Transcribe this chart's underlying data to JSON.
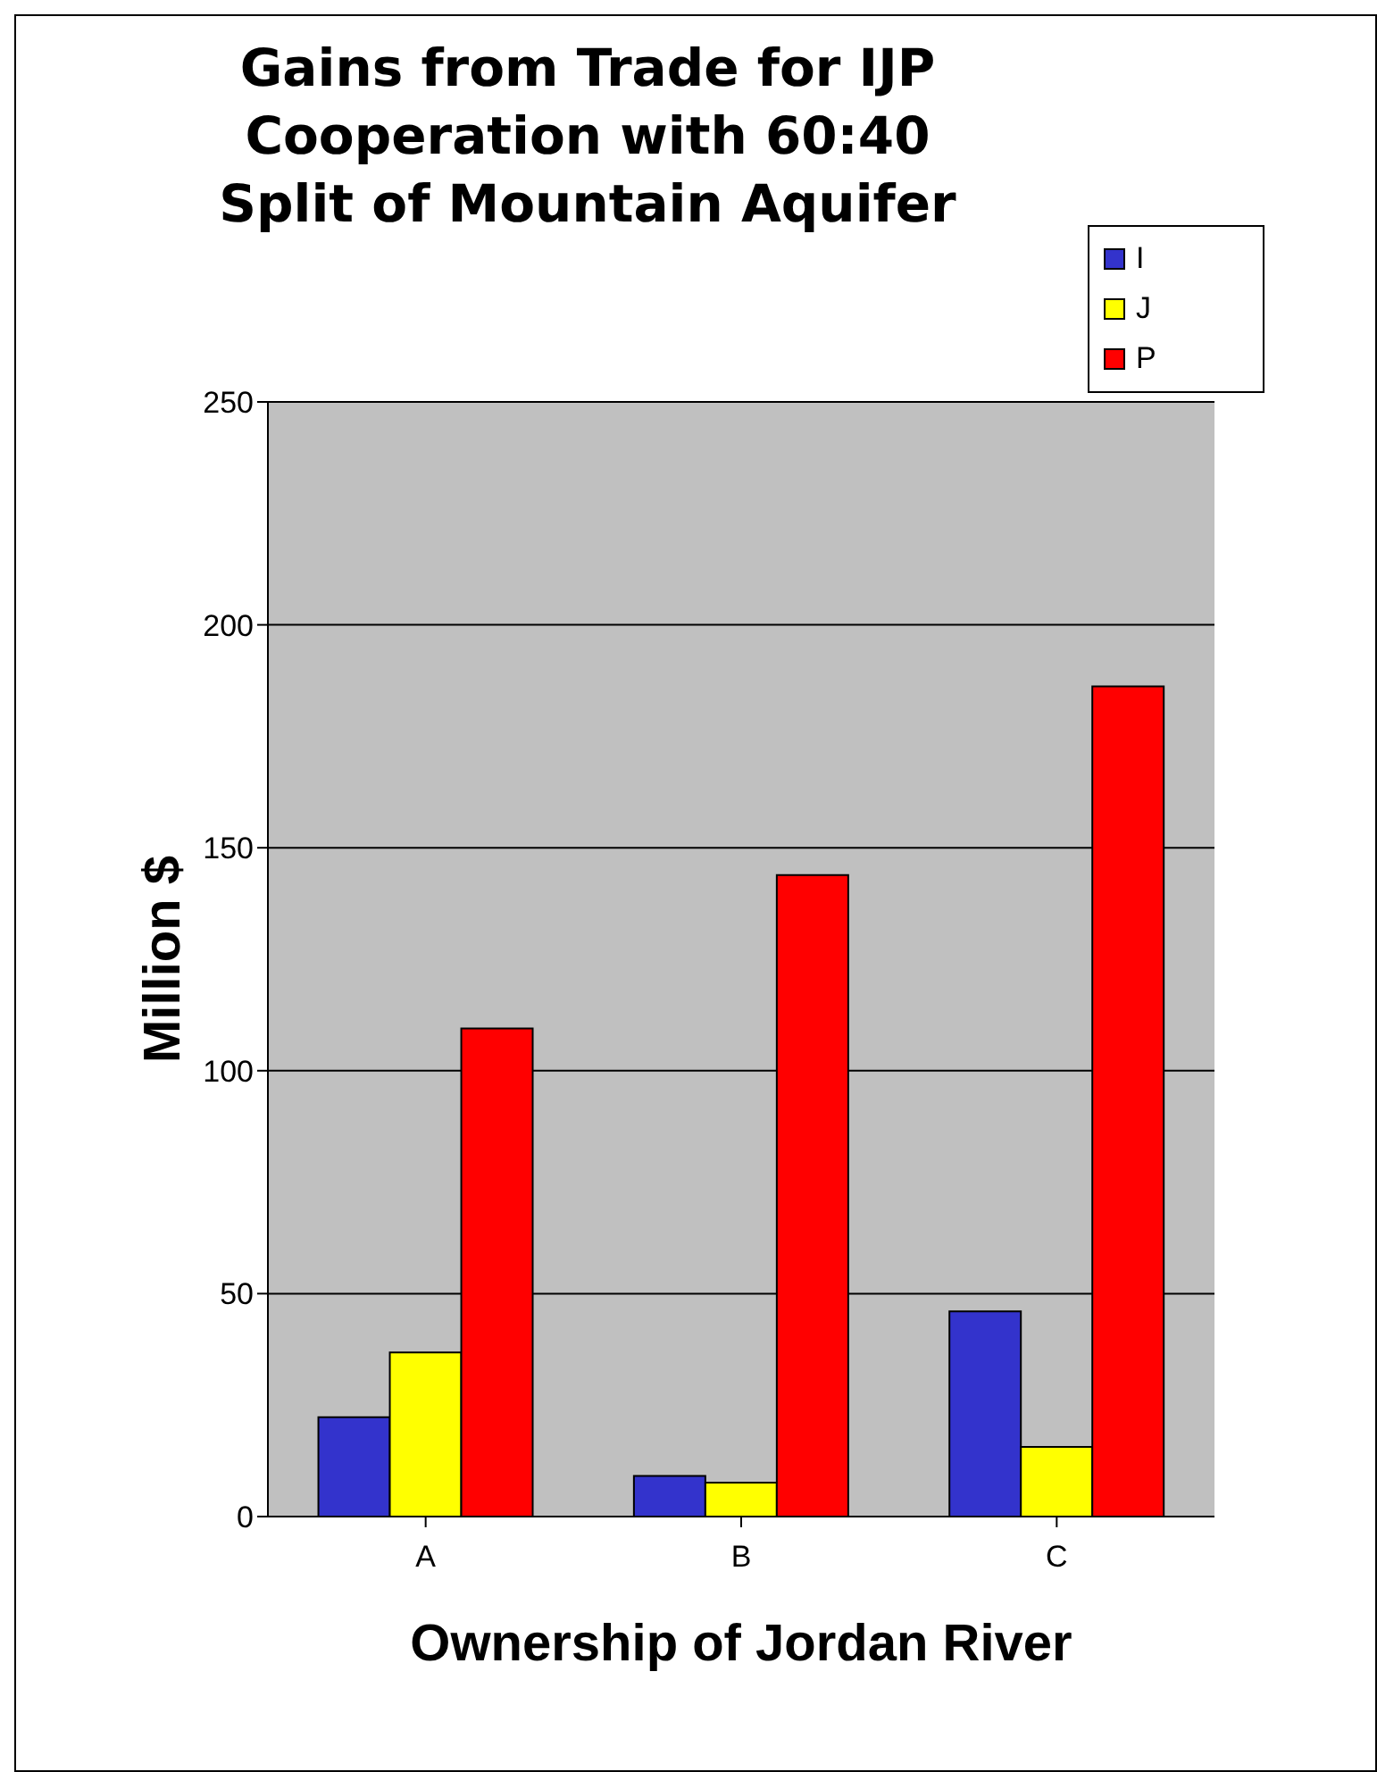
{
  "chart_data": {
    "type": "bar",
    "title": "Gains from Trade for IJP Cooperation with 60:40 Split of Mountain Aquifer",
    "xlabel": "Ownership of Jordan River",
    "ylabel": "Million $",
    "categories": [
      "A",
      "B",
      "C"
    ],
    "series": [
      {
        "name": "I",
        "color": "#3333cc",
        "values": [
          22.3,
          9.1,
          46
        ]
      },
      {
        "name": "J",
        "color": "#ffff00",
        "values": [
          36.8,
          7.6,
          15.6
        ]
      },
      {
        "name": "P",
        "color": "#ff0000",
        "values": [
          109.5,
          143.9,
          186.2
        ]
      }
    ],
    "ylim": [
      0,
      250
    ],
    "yticks": [
      0,
      50,
      100,
      150,
      200,
      250
    ],
    "grid": "y",
    "legend": "top right"
  }
}
